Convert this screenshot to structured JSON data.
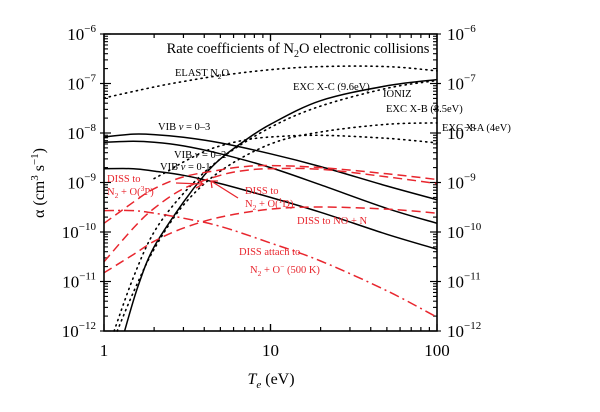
{
  "chart_data": {
    "type": "line",
    "title": "Rate coefficients of N₂O electronic collisions",
    "title_parts": {
      "pre": "Rate coefficients of N",
      "sub": "2",
      "post": "O electronic collisions"
    },
    "xlabel": {
      "main": "T",
      "sub": "e",
      "rest": " (eV)"
    },
    "ylabel": {
      "main": "α (cm",
      "sup1": "3",
      "mid": " s",
      "sup2": "−1",
      "post": ")"
    },
    "xscale": "log",
    "yscale": "log",
    "xlim": [
      1,
      100
    ],
    "ylim": [
      1e-12,
      1e-06
    ],
    "x_ticks": [
      {
        "value": 1,
        "label": "1"
      },
      {
        "value": 10,
        "label": "10"
      },
      {
        "value": 100,
        "label": "100"
      }
    ],
    "y_ticks": [
      {
        "value": 1e-06,
        "exp": "−6"
      },
      {
        "value": 1e-07,
        "exp": "−7"
      },
      {
        "value": 1e-08,
        "exp": "−8"
      },
      {
        "value": 1e-09,
        "exp": "−9"
      },
      {
        "value": 1e-10,
        "exp": "−10"
      },
      {
        "value": 1e-11,
        "exp": "−11"
      },
      {
        "value": 1e-12,
        "exp": "−12"
      }
    ],
    "y_tick_base": "10",
    "grid": false,
    "legend": "inline-labels",
    "colors": {
      "black": "#000000",
      "red": "#e8262e"
    },
    "series": [
      {
        "name": "ELAST N2O",
        "style": "dotted",
        "color": "black",
        "x": [
          1,
          2,
          3,
          5,
          10,
          20,
          50,
          100
        ],
        "y": [
          5.1e-08,
          8.5e-08,
          1.1e-07,
          1.45e-07,
          1.9e-07,
          2.2e-07,
          2.2e-07,
          1.8e-07
        ]
      },
      {
        "name": "EXC X-C (9.6eV)",
        "style": "dotted",
        "color": "black",
        "x": [
          1.15,
          1.5,
          2,
          3,
          5,
          10,
          20,
          50,
          100
        ],
        "y": [
          1e-12,
          1.2e-11,
          1e-10,
          6e-10,
          3e-09,
          1.3e-08,
          3.5e-08,
          8e-08,
          1.15e-07
        ]
      },
      {
        "name": "EXC X-B (8.5eV)",
        "style": "dotted",
        "color": "black",
        "x": [
          1.2,
          1.5,
          2,
          3,
          5,
          10,
          20,
          50,
          100
        ],
        "y": [
          1e-12,
          6e-12,
          4.5e-11,
          3.5e-10,
          1.7e-09,
          6e-09,
          1.05e-08,
          1.5e-08,
          1.6e-08
        ]
      },
      {
        "name": "EXC X-A (4eV)",
        "style": "dotted",
        "color": "black",
        "x": [
          2,
          2.5,
          3,
          4,
          5,
          7,
          10,
          20,
          50,
          100
        ],
        "y": [
          1.2e-09,
          1.8e-09,
          2.6e-09,
          4.2e-09,
          5.5e-09,
          7.2e-09,
          8.3e-09,
          9e-09,
          7.8e-09,
          6.3e-09
        ]
      },
      {
        "name": "IONIZ",
        "style": "solid",
        "color": "black",
        "x": [
          1.33,
          1.6,
          2,
          3,
          4,
          5,
          7,
          10,
          20,
          50,
          100
        ],
        "y": [
          1e-12,
          8e-12,
          5e-11,
          4e-10,
          1.4e-09,
          3e-09,
          7e-09,
          1.5e-08,
          4.5e-08,
          9e-08,
          1.2e-07
        ]
      },
      {
        "name": "VIB v = 0-3",
        "style": "solid",
        "color": "black",
        "x": [
          1,
          1.5,
          2,
          3,
          5,
          10,
          20,
          50,
          100
        ],
        "y": [
          8.3e-09,
          9.5e-09,
          9.3e-09,
          8.2e-09,
          6.3e-09,
          3.8e-09,
          2.1e-09,
          8.5e-10,
          4.5e-10
        ]
      },
      {
        "name": "VIB v = 0-2",
        "style": "solid",
        "color": "black",
        "x": [
          1,
          1.5,
          2,
          3,
          5,
          10,
          20,
          50,
          100
        ],
        "y": [
          6.5e-09,
          6.8e-09,
          6.5e-09,
          5.5e-09,
          3.8e-09,
          2e-09,
          9e-10,
          3e-10,
          1.5e-10
        ]
      },
      {
        "name": "VIB v = 0-1",
        "style": "solid",
        "color": "black",
        "x": [
          1,
          1.5,
          2,
          3,
          5,
          10,
          20,
          50,
          100
        ],
        "y": [
          1.9e-09,
          1.9e-09,
          1.7e-09,
          1.4e-09,
          9.5e-10,
          5e-10,
          2.5e-10,
          9e-11,
          4.5e-11
        ]
      },
      {
        "name": "DISS to N2 + O(3P)",
        "style": "dashed",
        "color": "red",
        "x": [
          1,
          1.5,
          2,
          3,
          5,
          7,
          10,
          20,
          50,
          100
        ],
        "y": [
          1.5e-10,
          4e-10,
          7.5e-10,
          1.3e-09,
          1.8e-09,
          2.1e-09,
          2.2e-09,
          2e-09,
          1.5e-09,
          1.15e-09
        ]
      },
      {
        "name": "DISS to N2 + O(1D)",
        "style": "dashed",
        "color": "red",
        "x": [
          1,
          1.5,
          2,
          3,
          5,
          7,
          10,
          20,
          50,
          100
        ],
        "y": [
          2.5e-11,
          1.2e-10,
          3e-10,
          7.5e-10,
          1.4e-09,
          1.75e-09,
          1.9e-09,
          1.85e-09,
          1.3e-09,
          9.5e-10
        ]
      },
      {
        "name": "DISS to NO + N",
        "style": "dashed",
        "color": "red",
        "x": [
          1,
          1.5,
          2,
          3,
          5,
          10,
          20,
          50,
          100
        ],
        "y": [
          1.5e-11,
          3.5e-11,
          6.5e-11,
          1.2e-10,
          2e-10,
          2.9e-10,
          3.2e-10,
          2.9e-10,
          2.4e-10
        ]
      },
      {
        "name": "DISS attach to N2 + O- (500 K)",
        "style": "dashdot",
        "color": "red",
        "x": [
          1,
          1.5,
          2,
          3,
          5,
          10,
          20,
          50,
          100
        ],
        "y": [
          2.7e-10,
          2.7e-10,
          2.4e-10,
          1.9e-10,
          1.3e-10,
          6e-11,
          2.6e-11,
          6.5e-12,
          1.9e-12
        ]
      }
    ],
    "annotations": [
      {
        "id": "elast",
        "parts": [
          [
            "ELAST N",
            ""
          ],
          [
            "2",
            "sub"
          ],
          [
            "O",
            ""
          ]
        ],
        "color": "black"
      },
      {
        "id": "excxc",
        "parts": [
          [
            "EXC X-C (9.6eV)",
            ""
          ]
        ],
        "color": "black"
      },
      {
        "id": "ioniz",
        "parts": [
          [
            "IONIZ",
            ""
          ]
        ],
        "color": "black"
      },
      {
        "id": "excxb",
        "parts": [
          [
            "EXC X-B (8.5eV)",
            ""
          ]
        ],
        "color": "black"
      },
      {
        "id": "excxa",
        "parts": [
          [
            "EXC X-A (4eV)",
            ""
          ]
        ],
        "color": "black"
      },
      {
        "id": "vib03",
        "parts": [
          [
            "VIB ",
            ""
          ],
          [
            "ν",
            "it"
          ],
          [
            " = 0–3",
            ""
          ]
        ],
        "color": "black"
      },
      {
        "id": "vib02",
        "parts": [
          [
            "VIB ",
            ""
          ],
          [
            "ν",
            "it"
          ],
          [
            " = 0–2",
            ""
          ]
        ],
        "color": "black"
      },
      {
        "id": "vib01",
        "parts": [
          [
            "VIB ",
            ""
          ],
          [
            "ν",
            "it"
          ],
          [
            " = 0-1",
            ""
          ]
        ],
        "color": "black"
      },
      {
        "id": "diss3p-1",
        "parts": [
          [
            "DISS to",
            ""
          ]
        ],
        "color": "red"
      },
      {
        "id": "diss3p-2",
        "parts": [
          [
            "N",
            ""
          ],
          [
            "2",
            "sub"
          ],
          [
            " + O(",
            ""
          ],
          [
            "3",
            "sup"
          ],
          [
            "P)",
            ""
          ]
        ],
        "color": "red"
      },
      {
        "id": "diss1d-1",
        "parts": [
          [
            "DISS to",
            ""
          ]
        ],
        "color": "red"
      },
      {
        "id": "diss1d-2",
        "parts": [
          [
            "N",
            ""
          ],
          [
            "2",
            "sub"
          ],
          [
            " + O(",
            ""
          ],
          [
            "1",
            "sup"
          ],
          [
            "D)",
            ""
          ]
        ],
        "color": "red"
      },
      {
        "id": "dissno",
        "parts": [
          [
            "DISS to NO + N",
            ""
          ]
        ],
        "color": "red"
      },
      {
        "id": "dissatt-1",
        "parts": [
          [
            "DISS attach to",
            ""
          ]
        ],
        "color": "red"
      },
      {
        "id": "dissatt-2",
        "parts": [
          [
            "N",
            ""
          ],
          [
            "2",
            "sub"
          ],
          [
            " + O",
            ""
          ],
          [
            "−",
            "sup"
          ],
          [
            "  (500 K)",
            ""
          ]
        ],
        "color": "red"
      }
    ]
  }
}
